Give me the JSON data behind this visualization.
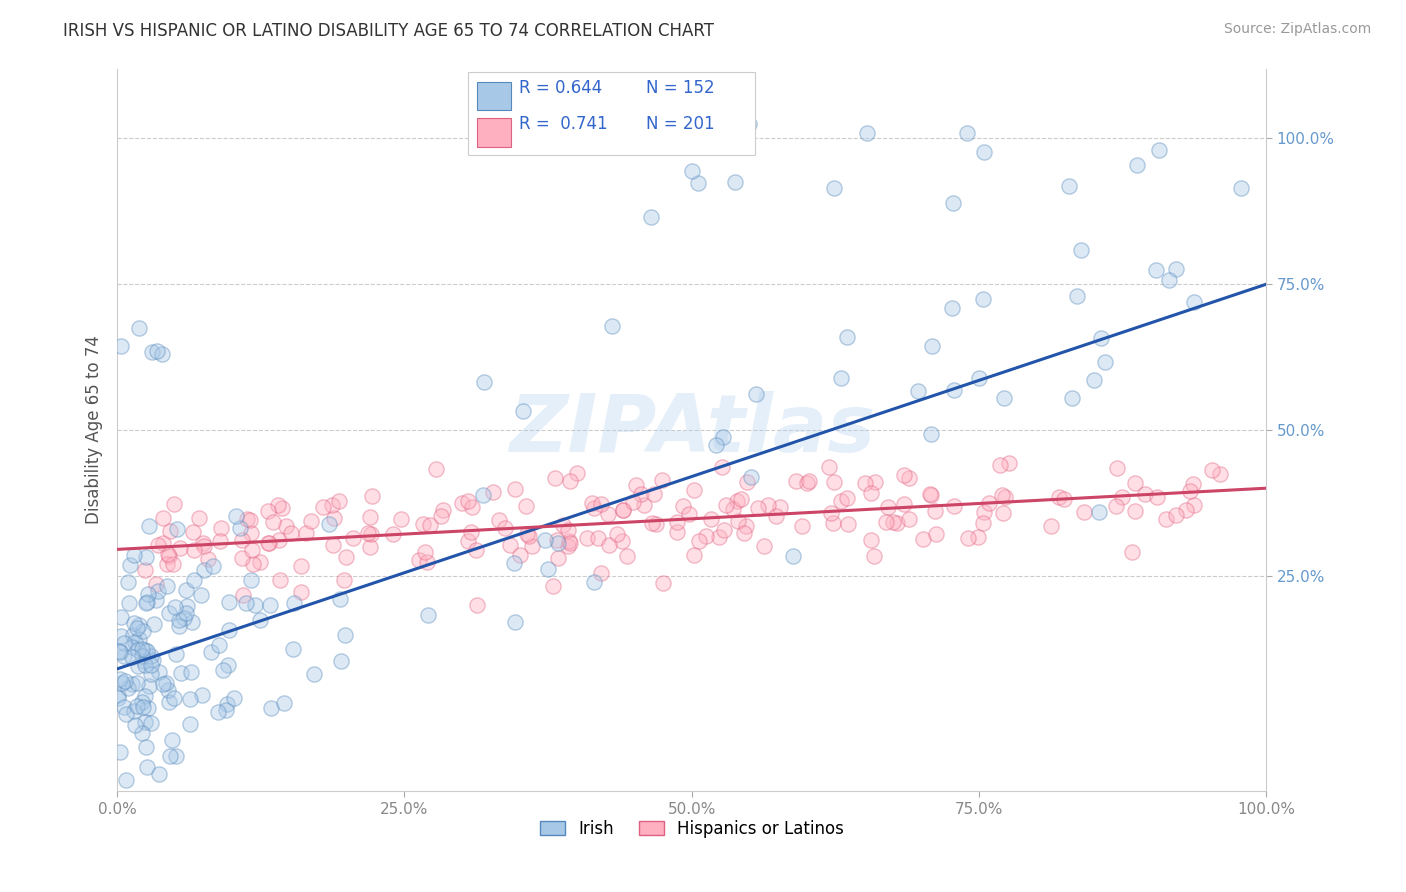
{
  "title": "IRISH VS HISPANIC OR LATINO DISABILITY AGE 65 TO 74 CORRELATION CHART",
  "source": "Source: ZipAtlas.com",
  "ylabel": "Disability Age 65 to 74",
  "watermark": "ZIPAtlas",
  "irish_R": 0.644,
  "irish_N": 152,
  "hispanic_R": 0.741,
  "hispanic_N": 201,
  "irish_color": "#A8C8E8",
  "irish_edge_color": "#5588BB",
  "irish_line_color": "#2255AA",
  "hispanic_color": "#FFB0C0",
  "hispanic_edge_color": "#E06080",
  "hispanic_line_color": "#CC4466",
  "background_color": "#FFFFFF",
  "grid_color": "#CCCCCC",
  "title_color": "#333333",
  "tick_color": "#6699CC",
  "legend_R_color": "#3366CC",
  "xlim": [
    0.0,
    1.0
  ],
  "ylim": [
    -0.12,
    1.12
  ],
  "y_ticks": [
    0.25,
    0.5,
    0.75,
    1.0
  ],
  "y_tick_labels": [
    "25.0%",
    "50.0%",
    "75.0%",
    "100.0%"
  ],
  "x_ticks": [
    0.0,
    0.25,
    0.5,
    0.75,
    1.0
  ],
  "x_tick_labels": [
    "0.0%",
    "25.0%",
    "50.0%",
    "75.0%",
    "100.0%"
  ],
  "irish_trend_x0": 0.0,
  "irish_trend_y0": 0.09,
  "irish_trend_x1": 1.0,
  "irish_trend_y1": 0.75,
  "hispanic_trend_x0": 0.0,
  "hispanic_trend_y0": 0.295,
  "hispanic_trend_x1": 1.0,
  "hispanic_trend_y1": 0.4,
  "marker_size": 120,
  "marker_alpha": 0.4,
  "marker_lw": 1.0,
  "legend_label_irish": "Irish",
  "legend_label_hispanic": "Hispanics or Latinos",
  "figsize": [
    14.06,
    8.92
  ],
  "dpi": 100
}
